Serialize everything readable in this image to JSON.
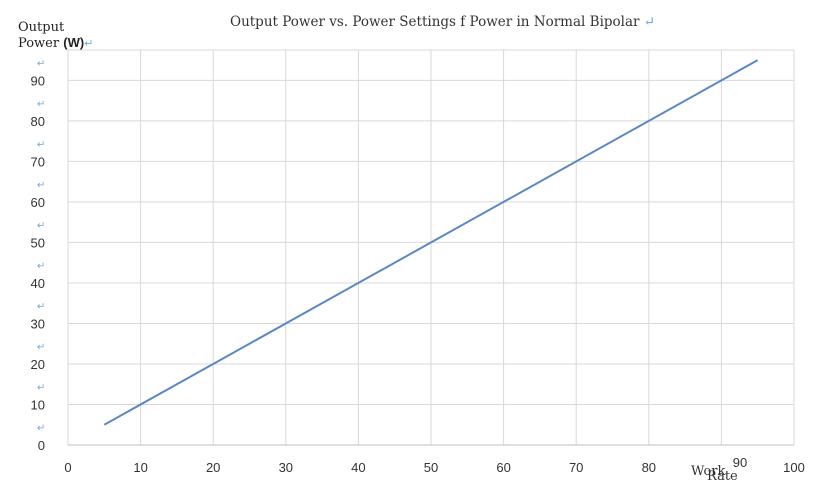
{
  "chart_data": {
    "type": "line",
    "title": "Output Power vs. Power Settings f Power in Normal Bipolar",
    "ylabel_line1": "Output",
    "ylabel_line2_text": "Power",
    "ylabel_line2_unit": "(W)",
    "xlabel_line1": "Work",
    "xlabel_line2": "Rate",
    "xlim": [
      0,
      100
    ],
    "ylim": [
      0,
      100
    ],
    "x_ticks": [
      "0",
      "10",
      "20",
      "30",
      "40",
      "50",
      "60",
      "70",
      "80",
      "90",
      "100"
    ],
    "y_ticks": [
      "0",
      "10",
      "20",
      "30",
      "40",
      "50",
      "60",
      "70",
      "80",
      "90"
    ],
    "extra_x_label": "90",
    "grid": true,
    "series": [
      {
        "x": [
          5,
          95
        ],
        "y": [
          5,
          95
        ]
      }
    ],
    "colors": {
      "line": "#5b87c2",
      "grid": "#d9d9d9",
      "axis": "#bfbfbf",
      "text": "#333333",
      "return_mark": "#6fa8dc"
    }
  }
}
